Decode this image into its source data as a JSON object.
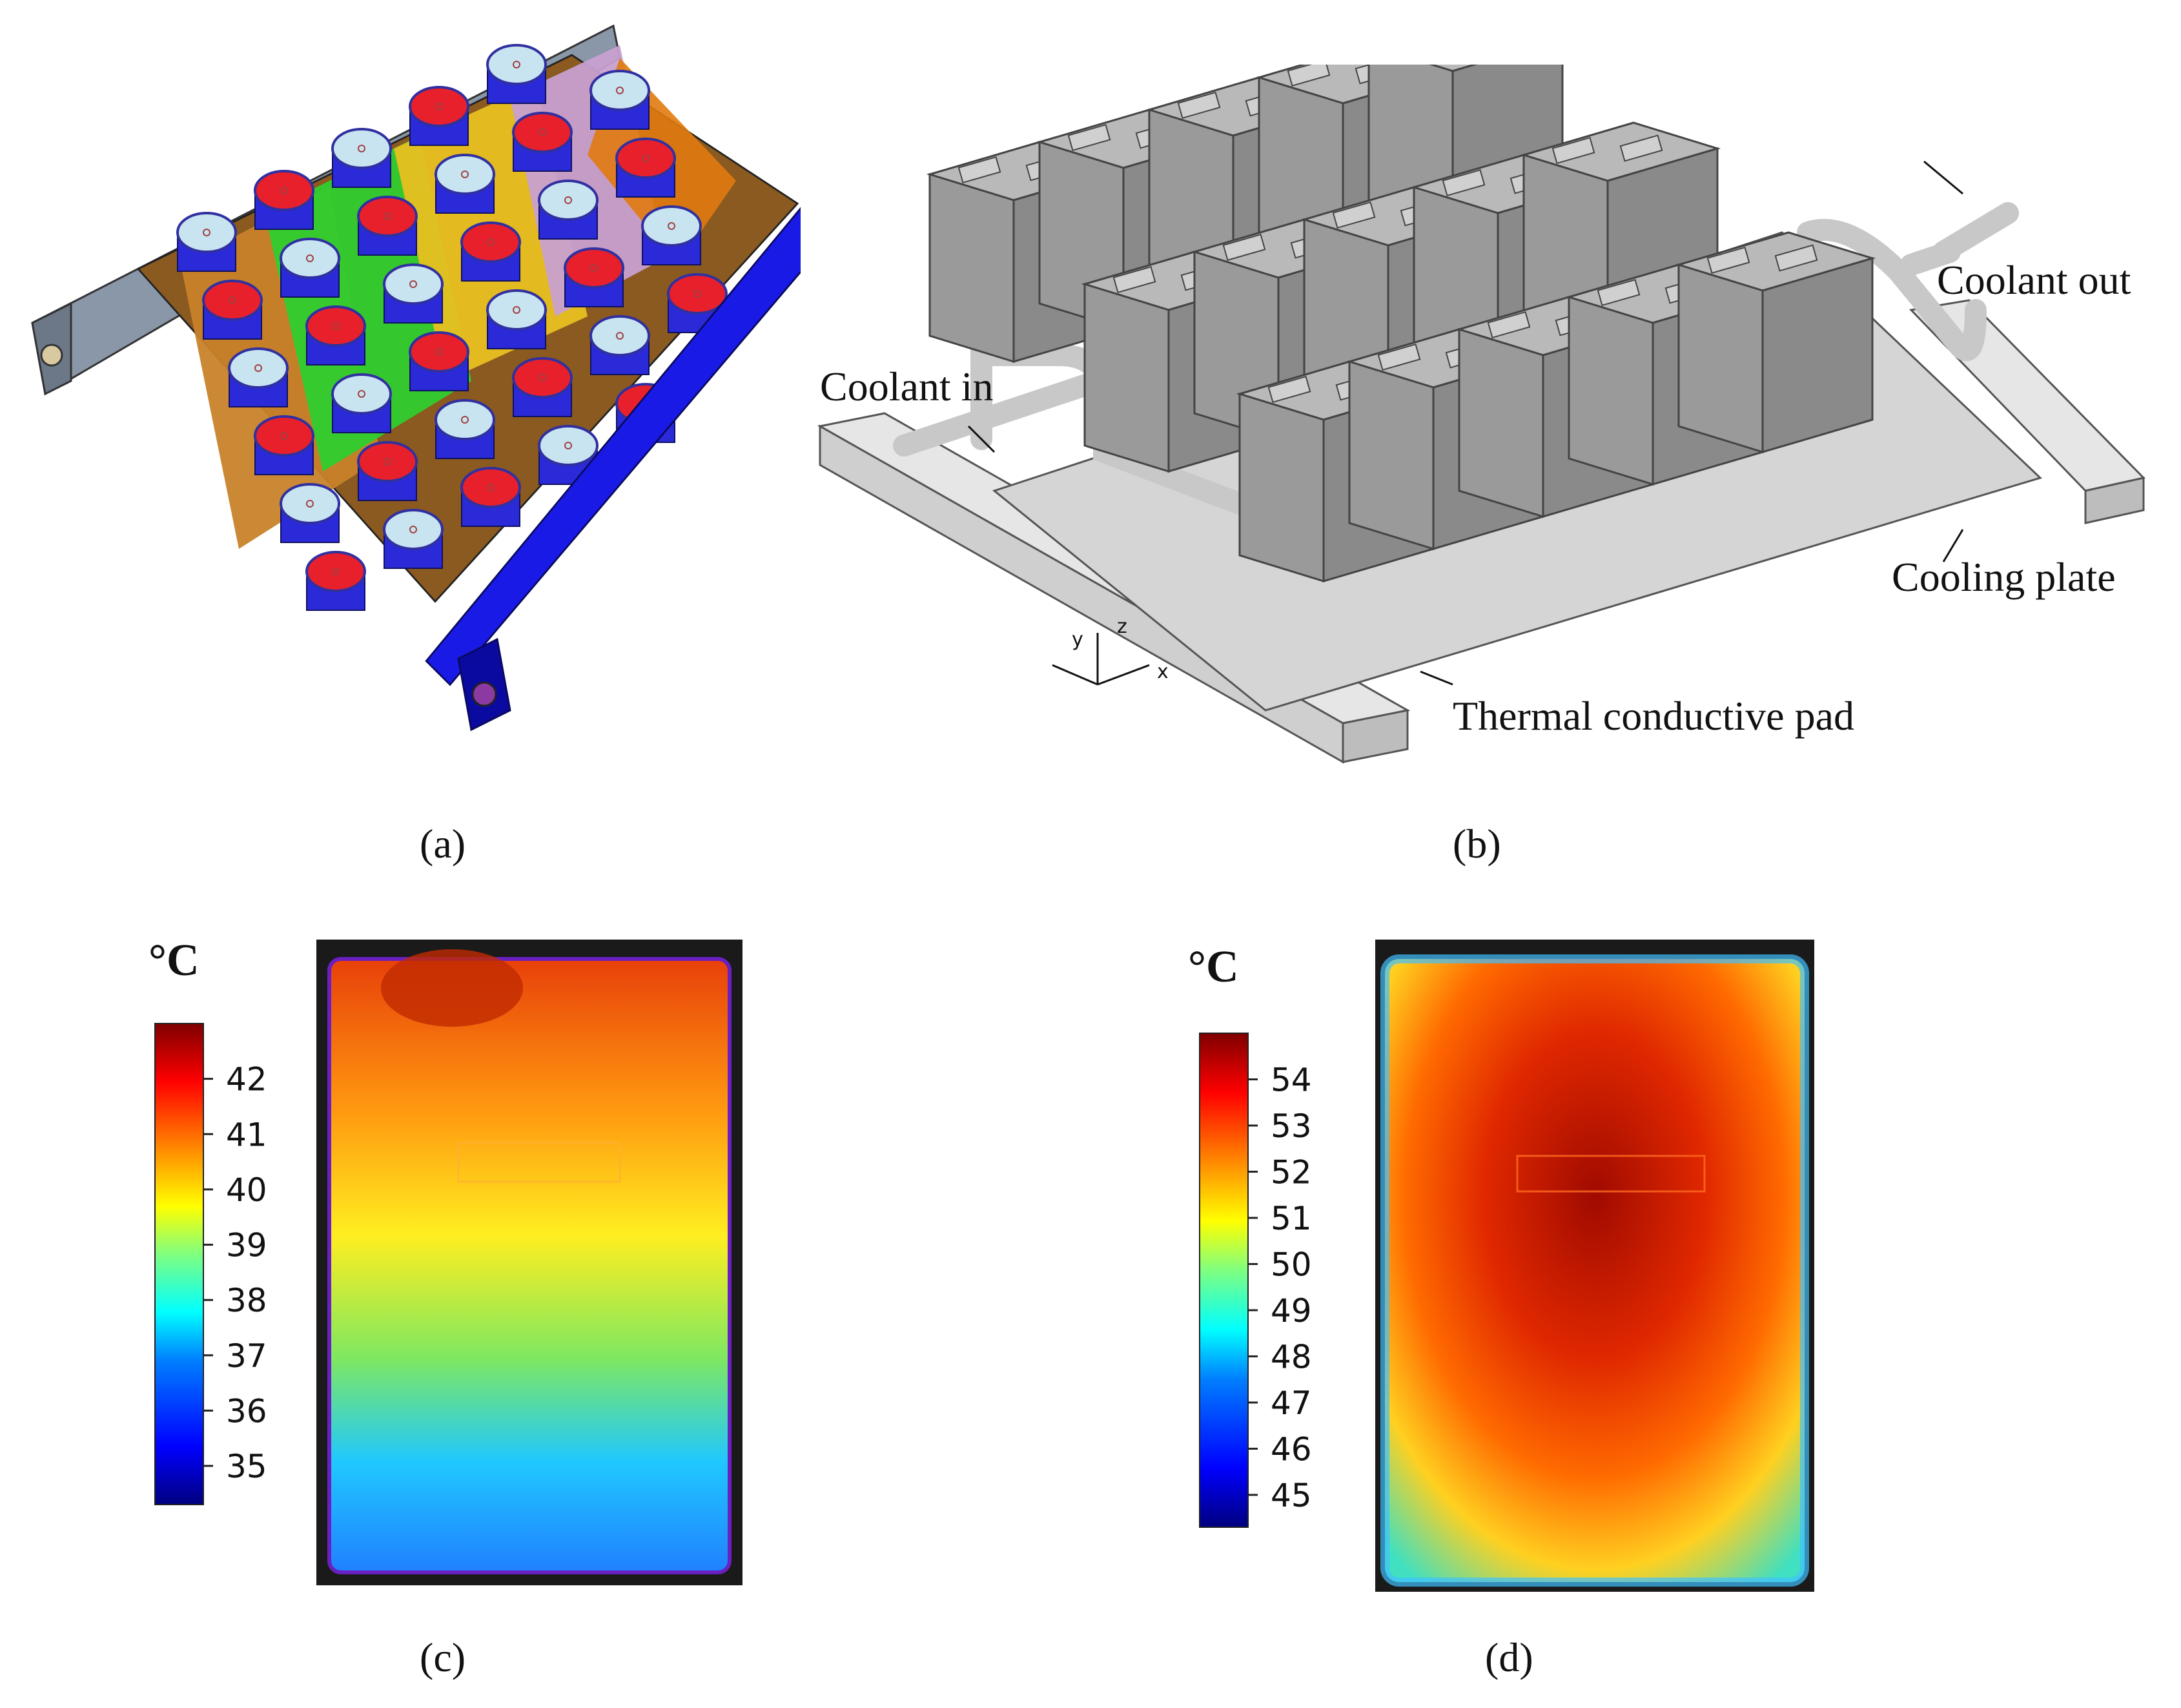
{
  "panels": {
    "a": {
      "caption": "(a)"
    },
    "b": {
      "caption": "(b)",
      "labels": {
        "coolant_in": "Coolant in",
        "coolant_out": "Coolant out",
        "cooling_plate": "Cooling plate",
        "thermal_pad": "Thermal conductive pad"
      },
      "axes": {
        "x": "x",
        "y": "y",
        "z": "z"
      }
    },
    "c": {
      "caption": "(c)",
      "unit": "°C",
      "ticks": [
        "42",
        "41",
        "40",
        "39",
        "38",
        "37",
        "36",
        "35"
      ],
      "range": [
        34.3,
        43.0
      ]
    },
    "d": {
      "caption": "(d)",
      "unit": "°C",
      "ticks": [
        "54",
        "53",
        "52",
        "51",
        "50",
        "49",
        "48",
        "47",
        "46",
        "45"
      ],
      "range": [
        44.3,
        55.0
      ]
    }
  },
  "colors": {
    "jet": [
      "#00007f",
      "#0000ff",
      "#007fff",
      "#00ffff",
      "#7fff7f",
      "#ffff00",
      "#ff7f00",
      "#ff0000",
      "#7f0000"
    ],
    "module_grey": "#9a9a9a",
    "rail_blue": "#1a1ae6",
    "rail_grey": "#8a97a8"
  }
}
